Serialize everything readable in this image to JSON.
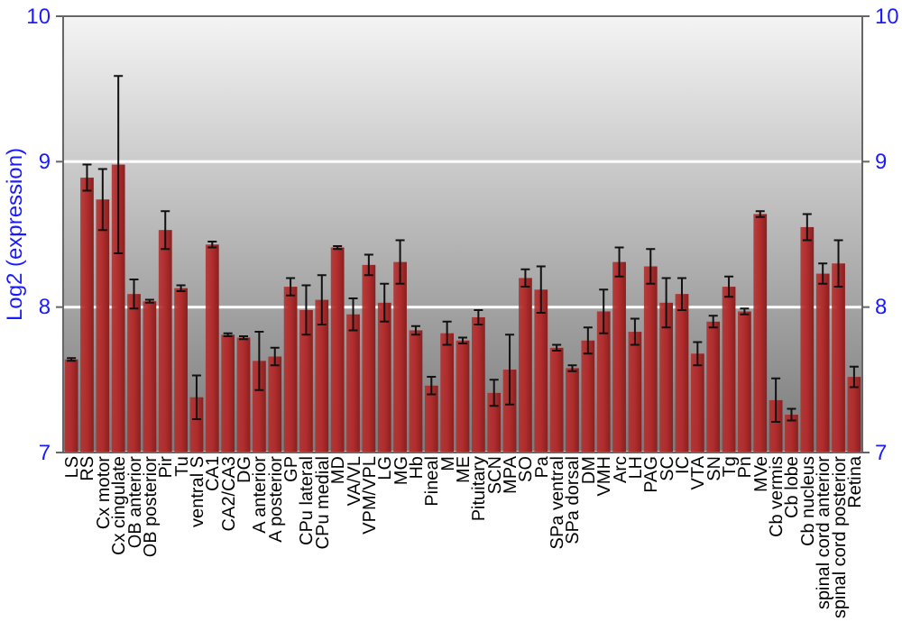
{
  "chart_data": {
    "type": "bar",
    "ylabel": "Log2 (expression)",
    "categories": [
      "LS",
      "RS",
      "Cx motor",
      "Cx cingulate",
      "OB anterior",
      "OB posterior",
      "Pir",
      "Tu",
      "ventral S",
      "CA1",
      "CA2/CA3",
      "DG",
      "A anterior",
      "A posterior",
      "GP",
      "CPu lateral",
      "CPu medial",
      "MD",
      "VA/VL",
      "VPM/VPL",
      "LG",
      "MG",
      "Hb",
      "Pineal",
      "M",
      "ME",
      "Pituitary",
      "SCN",
      "MPA",
      "SO",
      "Pa",
      "SPa ventral",
      "SPa dorsal",
      "DM",
      "VMH",
      "Arc",
      "LH",
      "PAG",
      "SC",
      "IC",
      "VTA",
      "SN",
      "Tg",
      "Pn",
      "MVe",
      "Cb vermis",
      "Cb lobe",
      "Cb nucleus",
      "spinal cord anterior",
      "spinal cord posterior",
      "Retina"
    ],
    "values": [
      7.64,
      8.89,
      8.74,
      8.98,
      8.09,
      8.04,
      8.53,
      8.13,
      7.38,
      8.43,
      7.81,
      7.79,
      7.63,
      7.66,
      8.14,
      7.98,
      8.05,
      8.41,
      7.95,
      8.29,
      8.03,
      8.31,
      7.84,
      7.46,
      7.82,
      7.77,
      7.93,
      7.41,
      7.57,
      8.2,
      8.12,
      7.72,
      7.58,
      7.77,
      7.97,
      8.31,
      7.83,
      8.28,
      8.03,
      8.09,
      7.68,
      7.9,
      8.14,
      7.97,
      8.64,
      7.36,
      7.26,
      8.55,
      8.23,
      8.3,
      7.52
    ],
    "errors": [
      0.01,
      0.09,
      0.21,
      0.61,
      0.1,
      0.01,
      0.13,
      0.02,
      0.15,
      0.02,
      0.01,
      0.01,
      0.2,
      0.06,
      0.06,
      0.17,
      0.17,
      0.01,
      0.11,
      0.07,
      0.13,
      0.15,
      0.03,
      0.06,
      0.08,
      0.02,
      0.05,
      0.09,
      0.24,
      0.06,
      0.16,
      0.02,
      0.02,
      0.09,
      0.15,
      0.1,
      0.09,
      0.12,
      0.17,
      0.11,
      0.08,
      0.04,
      0.07,
      0.02,
      0.02,
      0.15,
      0.04,
      0.09,
      0.07,
      0.16,
      0.07
    ],
    "color": "#b22c2c",
    "ylim": [
      7,
      10
    ],
    "yticks": [
      7,
      8,
      9,
      10
    ],
    "y2lim": [
      7,
      10
    ],
    "y2ticks": [
      7,
      8,
      9,
      10
    ],
    "grid": "y"
  }
}
